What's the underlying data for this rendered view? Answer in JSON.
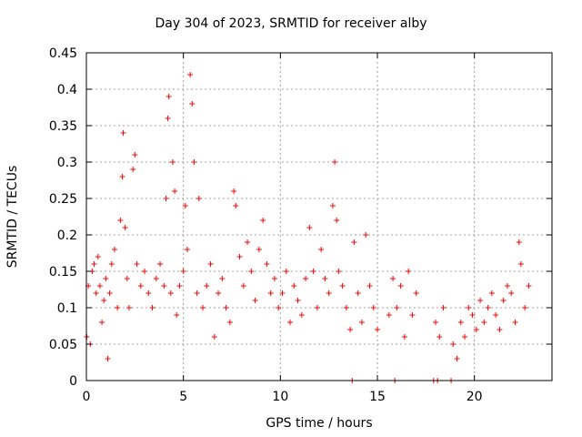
{
  "chart_data": {
    "type": "scatter",
    "title": "Day 304 of 2023, SRMTID for receiver alby",
    "xlabel": "GPS time / hours",
    "ylabel": "SRMTID / TECUs",
    "xlim": [
      0,
      24
    ],
    "ylim": [
      0,
      0.45
    ],
    "xticks": [
      0,
      5,
      10,
      15,
      20
    ],
    "yticks": [
      0,
      0.05,
      0.1,
      0.15,
      0.2,
      0.25,
      0.3,
      0.35,
      0.4,
      0.45
    ],
    "xtick_labels": [
      "0",
      "5",
      "10",
      "15",
      "20"
    ],
    "ytick_labels": [
      "0",
      "0.05",
      "0.1",
      "0.15",
      "0.2",
      "0.25",
      "0.3",
      "0.35",
      "0.4",
      "0.45"
    ],
    "grid": true,
    "marker": "+",
    "color": "#ff0000",
    "series": [
      {
        "name": "SRMTID",
        "points": [
          [
            0.02,
            0.06
          ],
          [
            0.1,
            0.13
          ],
          [
            0.2,
            0.05
          ],
          [
            0.3,
            0.15
          ],
          [
            0.4,
            0.16
          ],
          [
            0.5,
            0.12
          ],
          [
            0.6,
            0.17
          ],
          [
            0.7,
            0.13
          ],
          [
            0.8,
            0.08
          ],
          [
            0.9,
            0.11
          ],
          [
            1.0,
            0.14
          ],
          [
            1.1,
            0.03
          ],
          [
            1.2,
            0.12
          ],
          [
            1.3,
            0.16
          ],
          [
            1.45,
            0.18
          ],
          [
            1.6,
            0.1
          ],
          [
            1.75,
            0.22
          ],
          [
            1.85,
            0.28
          ],
          [
            1.9,
            0.34
          ],
          [
            2.0,
            0.21
          ],
          [
            2.1,
            0.14
          ],
          [
            2.2,
            0.1
          ],
          [
            2.4,
            0.29
          ],
          [
            2.5,
            0.31
          ],
          [
            2.6,
            0.16
          ],
          [
            2.8,
            0.13
          ],
          [
            3.0,
            0.15
          ],
          [
            3.2,
            0.12
          ],
          [
            3.4,
            0.1
          ],
          [
            3.6,
            0.14
          ],
          [
            3.8,
            0.16
          ],
          [
            4.0,
            0.13
          ],
          [
            4.1,
            0.25
          ],
          [
            4.2,
            0.36
          ],
          [
            4.25,
            0.39
          ],
          [
            4.35,
            0.12
          ],
          [
            4.45,
            0.3
          ],
          [
            4.55,
            0.26
          ],
          [
            4.65,
            0.09
          ],
          [
            4.8,
            0.13
          ],
          [
            5.0,
            0.15
          ],
          [
            5.1,
            0.24
          ],
          [
            5.2,
            0.18
          ],
          [
            5.35,
            0.42
          ],
          [
            5.45,
            0.38
          ],
          [
            5.55,
            0.3
          ],
          [
            5.7,
            0.12
          ],
          [
            5.8,
            0.25
          ],
          [
            6.0,
            0.1
          ],
          [
            6.2,
            0.13
          ],
          [
            6.4,
            0.16
          ],
          [
            6.6,
            0.06
          ],
          [
            6.8,
            0.12
          ],
          [
            7.0,
            0.14
          ],
          [
            7.2,
            0.1
          ],
          [
            7.4,
            0.08
          ],
          [
            7.6,
            0.26
          ],
          [
            7.7,
            0.24
          ],
          [
            7.9,
            0.17
          ],
          [
            8.1,
            0.13
          ],
          [
            8.3,
            0.19
          ],
          [
            8.5,
            0.15
          ],
          [
            8.7,
            0.11
          ],
          [
            8.9,
            0.18
          ],
          [
            9.1,
            0.22
          ],
          [
            9.3,
            0.16
          ],
          [
            9.5,
            0.12
          ],
          [
            9.7,
            0.14
          ],
          [
            9.9,
            0.1
          ],
          [
            10.1,
            0.12
          ],
          [
            10.3,
            0.15
          ],
          [
            10.5,
            0.08
          ],
          [
            10.7,
            0.13
          ],
          [
            10.9,
            0.11
          ],
          [
            11.1,
            0.09
          ],
          [
            11.3,
            0.14
          ],
          [
            11.5,
            0.21
          ],
          [
            11.7,
            0.15
          ],
          [
            11.9,
            0.1
          ],
          [
            12.1,
            0.18
          ],
          [
            12.3,
            0.14
          ],
          [
            12.5,
            0.12
          ],
          [
            12.7,
            0.24
          ],
          [
            12.8,
            0.3
          ],
          [
            12.9,
            0.22
          ],
          [
            13.0,
            0.15
          ],
          [
            13.2,
            0.13
          ],
          [
            13.4,
            0.1
          ],
          [
            13.6,
            0.07
          ],
          [
            13.8,
            0.19
          ],
          [
            14.0,
            0.12
          ],
          [
            14.2,
            0.08
          ],
          [
            14.4,
            0.2
          ],
          [
            14.6,
            0.13
          ],
          [
            14.8,
            0.1
          ],
          [
            15.0,
            0.07
          ],
          [
            15.6,
            0.09
          ],
          [
            15.8,
            0.14
          ],
          [
            16.0,
            0.1
          ],
          [
            16.2,
            0.13
          ],
          [
            16.4,
            0.06
          ],
          [
            16.6,
            0.15
          ],
          [
            16.8,
            0.09
          ],
          [
            17.0,
            0.12
          ],
          [
            18.0,
            0.08
          ],
          [
            18.2,
            0.06
          ],
          [
            18.4,
            0.1
          ],
          [
            18.9,
            0.05
          ],
          [
            19.1,
            0.03
          ],
          [
            19.3,
            0.08
          ],
          [
            19.5,
            0.06
          ],
          [
            19.7,
            0.1
          ],
          [
            19.9,
            0.09
          ],
          [
            20.1,
            0.07
          ],
          [
            20.3,
            0.11
          ],
          [
            20.5,
            0.08
          ],
          [
            20.7,
            0.1
          ],
          [
            20.9,
            0.12
          ],
          [
            21.1,
            0.09
          ],
          [
            21.3,
            0.07
          ],
          [
            21.5,
            0.11
          ],
          [
            21.7,
            0.13
          ],
          [
            21.9,
            0.12
          ],
          [
            22.1,
            0.08
          ],
          [
            22.3,
            0.19
          ],
          [
            22.4,
            0.16
          ],
          [
            22.6,
            0.1
          ],
          [
            22.8,
            0.13
          ],
          [
            13.7,
            0.0
          ],
          [
            15.9,
            0.0
          ],
          [
            17.9,
            0.0
          ],
          [
            18.1,
            0.0
          ],
          [
            18.8,
            0.0
          ]
        ]
      }
    ]
  }
}
